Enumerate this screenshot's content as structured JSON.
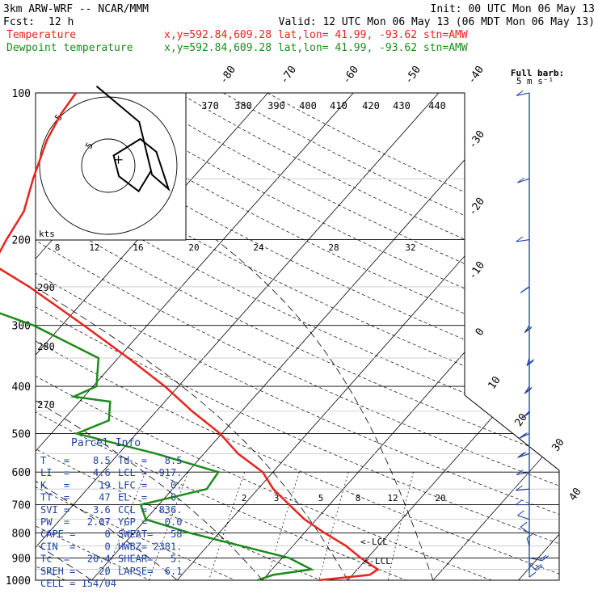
{
  "header": {
    "model": "3km ARW-WRF -- NCAR/MMM",
    "init": "Init: 00 UTC Mon 06 May 13",
    "fcst_label": "Fcst:",
    "fcst_value": "12 h",
    "valid": "Valid: 12 UTC Mon 06 May 13 (06 MDT Mon 06 May 13)",
    "temp_label": "Temperature",
    "dew_label": "Dewpoint temperature",
    "temp_loc": "x,y=592.84,609.28   lat,lon= 41.99, -93.62  stn=AMW",
    "dew_loc": "x,y=592.84,609.28   lat,lon= 41.99, -93.62  stn=AMW"
  },
  "colors": {
    "temperature": "#e8231e",
    "dewpoint": "#1f8a1c",
    "parcel_text": "#1a3f9c",
    "wind": "#1a3f9c"
  },
  "wind_key": {
    "title": "Full barb:",
    "unit": "5 m s⁻¹"
  },
  "hodograph": {
    "unit_label": "kts",
    "ring_label": "5",
    "marks": [
      "8",
      "12",
      "16",
      "20",
      "24",
      "28",
      "32"
    ]
  },
  "chart_data": {
    "type": "skew-t log-p sounding",
    "pressure_levels_hpa": [
      "100",
      "200",
      "300",
      "400",
      "500",
      "600",
      "700",
      "800",
      "900",
      "1000"
    ],
    "isotherm_labels_c": [
      "-80",
      "-70",
      "-60",
      "-50",
      "-40",
      "-30",
      "-20",
      "-10",
      "0",
      "10",
      "20",
      "30",
      "40"
    ],
    "theta_labels_k": [
      "370",
      "380",
      "390",
      "400",
      "410",
      "420",
      "430",
      "440",
      "290",
      "280",
      "270"
    ],
    "mixing_ratio_labels": [
      "2",
      "3",
      "5",
      "8",
      "12",
      "20"
    ],
    "lcl_labels": [
      "LCL",
      "LCL"
    ],
    "temperature_profile": [
      {
        "p": 1000,
        "t": 16.6
      },
      {
        "p": 975,
        "t": 22.0
      },
      {
        "p": 950,
        "t": 22.4
      },
      {
        "p": 925,
        "t": 20.8
      },
      {
        "p": 900,
        "t": 19.2
      },
      {
        "p": 850,
        "t": 16.2
      },
      {
        "p": 800,
        "t": 12.4
      },
      {
        "p": 750,
        "t": 8.6
      },
      {
        "p": 700,
        "t": 5.3
      },
      {
        "p": 650,
        "t": 1.8
      },
      {
        "p": 600,
        "t": -1.2
      },
      {
        "p": 550,
        "t": -6.0
      },
      {
        "p": 500,
        "t": -10.2
      },
      {
        "p": 450,
        "t": -15.8
      },
      {
        "p": 400,
        "t": -21.6
      },
      {
        "p": 350,
        "t": -28.8
      },
      {
        "p": 300,
        "t": -37.4
      },
      {
        "p": 250,
        "t": -47.8
      },
      {
        "p": 225,
        "t": -54.4
      },
      {
        "p": 200,
        "t": -55.4
      },
      {
        "p": 175,
        "t": -56.3
      },
      {
        "p": 150,
        "t": -58.6
      },
      {
        "p": 125,
        "t": -61.0
      },
      {
        "p": 110,
        "t": -62.1
      },
      {
        "p": 100,
        "t": -62.5
      }
    ],
    "dewpoint_profile": [
      {
        "p": 1000,
        "t": 9.4
      },
      {
        "p": 975,
        "t": 10.7
      },
      {
        "p": 950,
        "t": 14.6
      },
      {
        "p": 900,
        "t": 10.8
      },
      {
        "p": 850,
        "t": 3.9
      },
      {
        "p": 800,
        "t": -3.4
      },
      {
        "p": 750,
        "t": -10.0
      },
      {
        "p": 700,
        "t": -12.1
      },
      {
        "p": 650,
        "t": -6.0
      },
      {
        "p": 600,
        "t": -6.4
      },
      {
        "p": 550,
        "t": -15.6
      },
      {
        "p": 500,
        "t": -27.0
      },
      {
        "p": 470,
        "t": -24.6
      },
      {
        "p": 430,
        "t": -26.4
      },
      {
        "p": 420,
        "t": -31.2
      },
      {
        "p": 400,
        "t": -29.6
      },
      {
        "p": 350,
        "t": -32.3
      },
      {
        "p": 300,
        "t": -43.3
      },
      {
        "p": 250,
        "t": -59.8
      },
      {
        "p": 225,
        "t": -67.9
      },
      {
        "p": 200,
        "t": -74.2
      },
      {
        "p": 175,
        "t": -77.1
      },
      {
        "p": 150,
        "t": -81.5
      },
      {
        "p": 125,
        "t": -89.9
      },
      {
        "p": 100,
        "t": -95.3
      }
    ],
    "hodograph_kts": [
      {
        "u": 8.0,
        "v": -1.0
      },
      {
        "u": 5.7,
        "v": -4.8
      },
      {
        "u": 2.0,
        "v": -2.0
      },
      {
        "u": 1.0,
        "v": 1.9
      },
      {
        "u": 6.0,
        "v": 5.0
      },
      {
        "u": 9.0,
        "v": 2.6
      },
      {
        "u": 11.3,
        "v": -4.4
      },
      {
        "u": 8.2,
        "v": -1.7
      },
      {
        "u": 5.8,
        "v": 8.2
      },
      {
        "u": -2.2,
        "v": 14.9
      }
    ],
    "storm_motion_kts": {
      "u": 1.9,
      "v": 1.1
    },
    "wind_profile": [
      {
        "p": 100,
        "speed_ms": 3,
        "dir_deg": 250
      },
      {
        "p": 150,
        "speed_ms": 4,
        "dir_deg": 240
      },
      {
        "p": 200,
        "speed_ms": 5,
        "dir_deg": 255
      },
      {
        "p": 250,
        "speed_ms": 9,
        "dir_deg": 220
      },
      {
        "p": 300,
        "speed_ms": 11,
        "dir_deg": 200
      },
      {
        "p": 350,
        "speed_ms": 12,
        "dir_deg": 190
      },
      {
        "p": 400,
        "speed_ms": 11,
        "dir_deg": 200
      },
      {
        "p": 450,
        "speed_ms": 10,
        "dir_deg": 210
      },
      {
        "p": 500,
        "speed_ms": 11,
        "dir_deg": 230
      },
      {
        "p": 550,
        "speed_ms": 8,
        "dir_deg": 240
      },
      {
        "p": 600,
        "speed_ms": 7,
        "dir_deg": 250
      },
      {
        "p": 650,
        "speed_ms": 6,
        "dir_deg": 260
      },
      {
        "p": 700,
        "speed_ms": 6,
        "dir_deg": 270
      },
      {
        "p": 750,
        "speed_ms": 6,
        "dir_deg": 300
      },
      {
        "p": 800,
        "speed_ms": 5,
        "dir_deg": 320
      },
      {
        "p": 850,
        "speed_ms": 6,
        "dir_deg": 350
      },
      {
        "p": 900,
        "speed_ms": 12,
        "dir_deg": 110
      },
      {
        "p": 925,
        "speed_ms": 9,
        "dir_deg": 150
      },
      {
        "p": 950,
        "speed_ms": 6,
        "dir_deg": 180
      }
    ]
  },
  "parcel": {
    "title": "Parcel Info",
    "rows": [
      {
        "a": "T   =    8.5",
        "b": "Td  =   8.5"
      },
      {
        "a": "LI  =    4.6",
        "b": "LCL =  917."
      },
      {
        "a": "K   =     19",
        "b": "LFC =    0."
      },
      {
        "a": "TT  =     47",
        "b": "EL  =    0."
      },
      {
        "a": "SVI =    3.6",
        "b": "CCL =  836."
      },
      {
        "a": "PW  =   2.07",
        "b": "YGP =   0.0"
      },
      {
        "a": "CAPE =     0",
        "b": "SWEAT=   58"
      },
      {
        "a": "CIN  =     0",
        "b": "HWBZ= 2381."
      },
      {
        "a": "Tc  =   20.4",
        "b": "SHEAR=   5."
      },
      {
        "a": "SREH =    20",
        "b": "LAPSE=  6.1"
      },
      {
        "a": "CELL = 154/04",
        "b": ""
      }
    ]
  }
}
